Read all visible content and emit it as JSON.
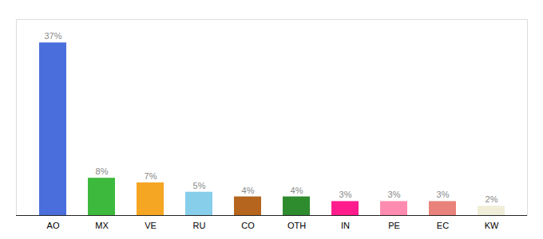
{
  "chart_data": {
    "type": "bar",
    "categories": [
      "AO",
      "MX",
      "VE",
      "RU",
      "CO",
      "OTH",
      "IN",
      "PE",
      "EC",
      "KW"
    ],
    "values": [
      37,
      8,
      7,
      5,
      4,
      4,
      3,
      3,
      3,
      2
    ],
    "value_labels": [
      "37%",
      "8%",
      "7%",
      "5%",
      "4%",
      "4%",
      "3%",
      "3%",
      "3%",
      "2%"
    ],
    "colors": [
      "#4a6fdc",
      "#3dba3d",
      "#f5a623",
      "#87ceeb",
      "#b5651d",
      "#2e8b2e",
      "#ff1c8d",
      "#ff8cb0",
      "#e8827a",
      "#f0eed8"
    ],
    "ylim": [
      0,
      42
    ],
    "data_labels": true,
    "tick_labels": "x",
    "grid": false
  }
}
